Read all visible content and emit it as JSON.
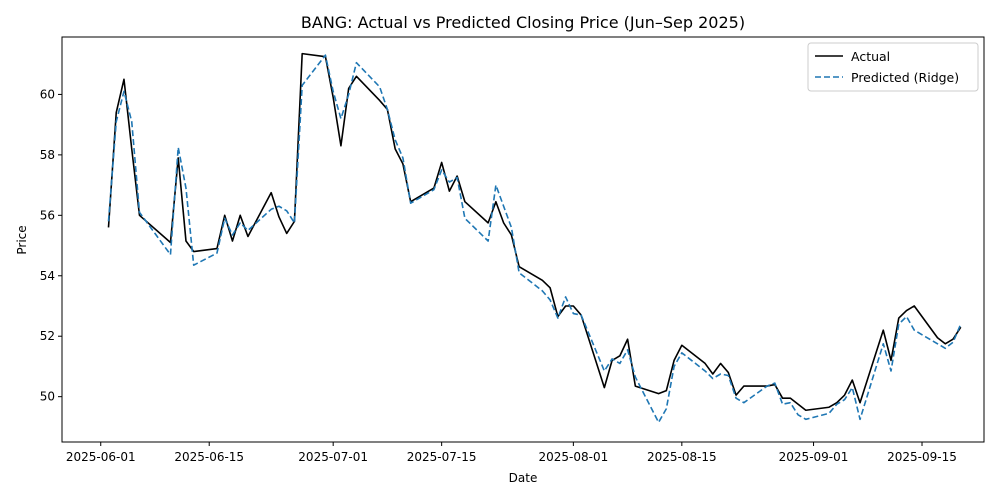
{
  "chart_data": {
    "type": "line",
    "title": "BANG: Actual vs Predicted Closing Price (Jun–Sep 2025)",
    "xlabel": "Date",
    "ylabel": "Price",
    "x_ticks": [
      "2025-06-01",
      "2025-06-15",
      "2025-07-01",
      "2025-07-15",
      "2025-08-01",
      "2025-08-15",
      "2025-09-01",
      "2025-09-15"
    ],
    "y_ticks": [
      50,
      52,
      54,
      56,
      58,
      60
    ],
    "xlim": [
      "2025-05-27",
      "2025-09-23"
    ],
    "ylim": [
      48.5,
      61.9
    ],
    "legend_position": "top-right",
    "grid": false,
    "series": [
      {
        "name": "Actual",
        "color": "#000000",
        "style": "solid",
        "points": [
          [
            "2025-06-02",
            55.6
          ],
          [
            "2025-06-03",
            59.4
          ],
          [
            "2025-06-04",
            60.5
          ],
          [
            "2025-06-05",
            58.2
          ],
          [
            "2025-06-06",
            56.0
          ],
          [
            "2025-06-10",
            55.1
          ],
          [
            "2025-06-11",
            57.9
          ],
          [
            "2025-06-12",
            55.15
          ],
          [
            "2025-06-13",
            54.8
          ],
          [
            "2025-06-16",
            54.9
          ],
          [
            "2025-06-17",
            56.0
          ],
          [
            "2025-06-18",
            55.15
          ],
          [
            "2025-06-19",
            56.0
          ],
          [
            "2025-06-20",
            55.3
          ],
          [
            "2025-06-23",
            56.75
          ],
          [
            "2025-06-24",
            55.95
          ],
          [
            "2025-06-25",
            55.4
          ],
          [
            "2025-06-26",
            55.8
          ],
          [
            "2025-06-27",
            61.35
          ],
          [
            "2025-06-30",
            61.25
          ],
          [
            "2025-07-01",
            59.9
          ],
          [
            "2025-07-02",
            58.3
          ],
          [
            "2025-07-03",
            60.2
          ],
          [
            "2025-07-04",
            60.6
          ],
          [
            "2025-07-07",
            59.8
          ],
          [
            "2025-07-08",
            59.5
          ],
          [
            "2025-07-09",
            58.2
          ],
          [
            "2025-07-10",
            57.7
          ],
          [
            "2025-07-11",
            56.45
          ],
          [
            "2025-07-14",
            56.9
          ],
          [
            "2025-07-15",
            57.75
          ],
          [
            "2025-07-16",
            56.8
          ],
          [
            "2025-07-17",
            57.3
          ],
          [
            "2025-07-18",
            56.45
          ],
          [
            "2025-07-21",
            55.75
          ],
          [
            "2025-07-22",
            56.45
          ],
          [
            "2025-07-23",
            55.75
          ],
          [
            "2025-07-24",
            55.35
          ],
          [
            "2025-07-25",
            54.3
          ],
          [
            "2025-07-28",
            53.85
          ],
          [
            "2025-07-29",
            53.6
          ],
          [
            "2025-07-30",
            52.65
          ],
          [
            "2025-07-31",
            53.0
          ],
          [
            "2025-08-01",
            53.0
          ],
          [
            "2025-08-02",
            52.7
          ],
          [
            "2025-08-05",
            50.3
          ],
          [
            "2025-08-06",
            51.2
          ],
          [
            "2025-08-07",
            51.35
          ],
          [
            "2025-08-08",
            51.9
          ],
          [
            "2025-08-09",
            50.35
          ],
          [
            "2025-08-12",
            50.1
          ],
          [
            "2025-08-13",
            50.2
          ],
          [
            "2025-08-14",
            51.2
          ],
          [
            "2025-08-15",
            51.7
          ],
          [
            "2025-08-18",
            51.1
          ],
          [
            "2025-08-19",
            50.75
          ],
          [
            "2025-08-20",
            51.1
          ],
          [
            "2025-08-21",
            50.8
          ],
          [
            "2025-08-22",
            50.05
          ],
          [
            "2025-08-23",
            50.35
          ],
          [
            "2025-08-26",
            50.35
          ],
          [
            "2025-08-27",
            50.4
          ],
          [
            "2025-08-28",
            49.95
          ],
          [
            "2025-08-29",
            49.95
          ],
          [
            "2025-08-31",
            49.55
          ],
          [
            "2025-09-03",
            49.65
          ],
          [
            "2025-09-04",
            49.8
          ],
          [
            "2025-09-05",
            50.05
          ],
          [
            "2025-09-06",
            50.55
          ],
          [
            "2025-09-07",
            49.8
          ],
          [
            "2025-09-10",
            52.2
          ],
          [
            "2025-09-11",
            51.2
          ],
          [
            "2025-09-12",
            52.6
          ],
          [
            "2025-09-13",
            52.85
          ],
          [
            "2025-09-14",
            53.0
          ],
          [
            "2025-09-17",
            51.95
          ],
          [
            "2025-09-18",
            51.75
          ],
          [
            "2025-09-19",
            51.9
          ],
          [
            "2025-09-20",
            52.3
          ]
        ]
      },
      {
        "name": "Predicted (Ridge)",
        "color": "#1f77b4",
        "style": "dashed",
        "points": [
          [
            "2025-06-02",
            55.8
          ],
          [
            "2025-06-03",
            59.1
          ],
          [
            "2025-06-04",
            60.1
          ],
          [
            "2025-06-05",
            59.1
          ],
          [
            "2025-06-06",
            56.1
          ],
          [
            "2025-06-10",
            54.7
          ],
          [
            "2025-06-11",
            58.25
          ],
          [
            "2025-06-12",
            56.9
          ],
          [
            "2025-06-13",
            54.35
          ],
          [
            "2025-06-16",
            54.75
          ],
          [
            "2025-06-17",
            55.9
          ],
          [
            "2025-06-18",
            55.35
          ],
          [
            "2025-06-19",
            55.75
          ],
          [
            "2025-06-20",
            55.5
          ],
          [
            "2025-06-23",
            56.2
          ],
          [
            "2025-06-24",
            56.3
          ],
          [
            "2025-06-25",
            56.15
          ],
          [
            "2025-06-26",
            55.75
          ],
          [
            "2025-06-27",
            60.3
          ],
          [
            "2025-06-30",
            61.3
          ],
          [
            "2025-07-01",
            60.1
          ],
          [
            "2025-07-02",
            59.2
          ],
          [
            "2025-07-03",
            60.0
          ],
          [
            "2025-07-04",
            61.05
          ],
          [
            "2025-07-07",
            60.25
          ],
          [
            "2025-07-08",
            59.5
          ],
          [
            "2025-07-09",
            58.5
          ],
          [
            "2025-07-10",
            57.9
          ],
          [
            "2025-07-11",
            56.4
          ],
          [
            "2025-07-14",
            56.85
          ],
          [
            "2025-07-15",
            57.5
          ],
          [
            "2025-07-16",
            57.1
          ],
          [
            "2025-07-17",
            57.25
          ],
          [
            "2025-07-18",
            55.9
          ],
          [
            "2025-07-21",
            55.15
          ],
          [
            "2025-07-22",
            57.0
          ],
          [
            "2025-07-23",
            56.3
          ],
          [
            "2025-07-24",
            55.6
          ],
          [
            "2025-07-25",
            54.1
          ],
          [
            "2025-07-28",
            53.5
          ],
          [
            "2025-07-29",
            53.2
          ],
          [
            "2025-07-30",
            52.6
          ],
          [
            "2025-07-31",
            53.3
          ],
          [
            "2025-08-01",
            52.75
          ],
          [
            "2025-08-02",
            52.7
          ],
          [
            "2025-08-05",
            50.85
          ],
          [
            "2025-08-06",
            51.25
          ],
          [
            "2025-08-07",
            51.1
          ],
          [
            "2025-08-08",
            51.55
          ],
          [
            "2025-08-09",
            50.65
          ],
          [
            "2025-08-12",
            49.15
          ],
          [
            "2025-08-13",
            49.6
          ],
          [
            "2025-08-14",
            51.0
          ],
          [
            "2025-08-15",
            51.45
          ],
          [
            "2025-08-18",
            50.85
          ],
          [
            "2025-08-19",
            50.6
          ],
          [
            "2025-08-20",
            50.75
          ],
          [
            "2025-08-21",
            50.7
          ],
          [
            "2025-08-22",
            49.95
          ],
          [
            "2025-08-23",
            49.8
          ],
          [
            "2025-08-26",
            50.35
          ],
          [
            "2025-08-27",
            50.45
          ],
          [
            "2025-08-28",
            49.75
          ],
          [
            "2025-08-29",
            49.8
          ],
          [
            "2025-08-30",
            49.4
          ],
          [
            "2025-08-31",
            49.25
          ],
          [
            "2025-09-03",
            49.45
          ],
          [
            "2025-09-04",
            49.75
          ],
          [
            "2025-09-05",
            49.9
          ],
          [
            "2025-09-06",
            50.3
          ],
          [
            "2025-09-07",
            49.25
          ],
          [
            "2025-09-10",
            51.75
          ],
          [
            "2025-09-11",
            50.85
          ],
          [
            "2025-09-12",
            52.4
          ],
          [
            "2025-09-13",
            52.65
          ],
          [
            "2025-09-14",
            52.2
          ],
          [
            "2025-09-17",
            51.75
          ],
          [
            "2025-09-18",
            51.6
          ],
          [
            "2025-09-19",
            51.8
          ],
          [
            "2025-09-20",
            52.4
          ]
        ]
      }
    ]
  }
}
